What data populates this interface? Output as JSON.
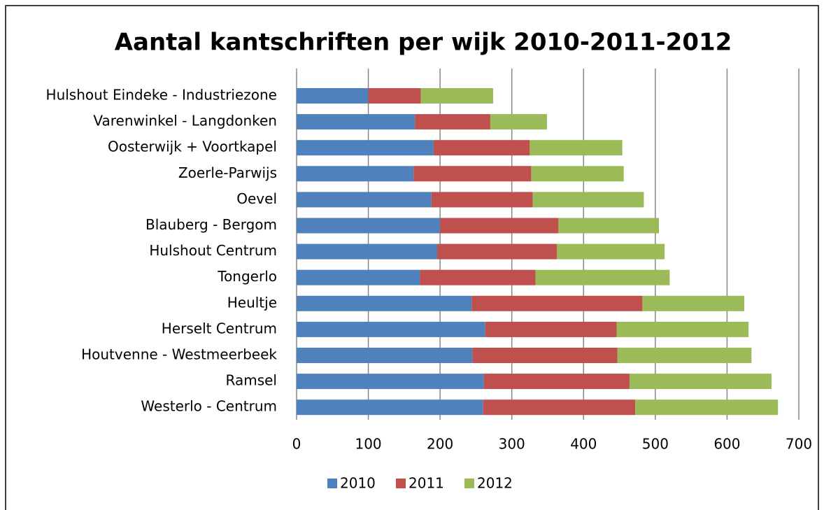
{
  "chart_data": {
    "type": "stacked-bar-horizontal",
    "title": "Aantal kantschriften per wijk 2010-2011-2012",
    "categories": [
      "Hulshout Eindeke - Industriezone",
      "Varenwinkel - Langdonken",
      "Oosterwijk + Voortkapel",
      "Zoerle-Parwijs",
      "Oevel",
      "Blauberg - Bergom",
      "Hulshout Centrum",
      "Tongerlo",
      "Heultje",
      "Herselt Centrum",
      "Houtvenne - Westmeerbeek",
      "Ramsel",
      "Westerlo - Centrum"
    ],
    "series": [
      {
        "name": "2010",
        "color": "#4f81bd",
        "values": [
          100,
          165,
          191,
          163,
          188,
          200,
          196,
          172,
          244,
          263,
          245,
          261,
          260
        ]
      },
      {
        "name": "2011",
        "color": "#c0504d",
        "values": [
          73,
          105,
          134,
          164,
          141,
          165,
          167,
          161,
          238,
          183,
          202,
          203,
          212
        ]
      },
      {
        "name": "2012",
        "color": "#9bbb59",
        "values": [
          101,
          79,
          129,
          129,
          155,
          140,
          150,
          187,
          142,
          184,
          187,
          198,
          199
        ]
      }
    ],
    "xlim": [
      0,
      700
    ],
    "xticks": [
      0,
      100,
      200,
      300,
      400,
      500,
      600,
      700
    ],
    "grid": true,
    "legend": "bottom"
  }
}
